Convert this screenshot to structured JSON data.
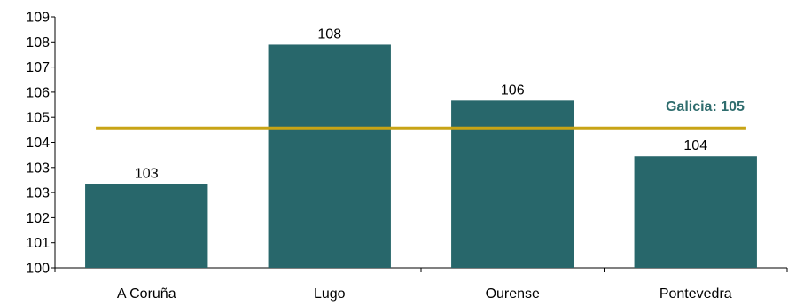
{
  "chart_data": {
    "type": "bar",
    "categories": [
      "A Coruña",
      "Lugo",
      "Ourense",
      "Pontevedra"
    ],
    "values": [
      103,
      108,
      106,
      104
    ],
    "data_labels": [
      "103",
      "108",
      "106",
      "104"
    ],
    "y_tick_labels": [
      "100",
      "101",
      "102",
      "103",
      "103",
      "104",
      "105",
      "106",
      "107",
      "108",
      "109"
    ],
    "ylim": [
      100,
      109
    ],
    "grid": false,
    "bar_color": "#28676b",
    "reference_line": {
      "value": 105,
      "label": "Galicia: 105",
      "color": "#c8a415",
      "label_color": "#2f6d6e"
    }
  }
}
